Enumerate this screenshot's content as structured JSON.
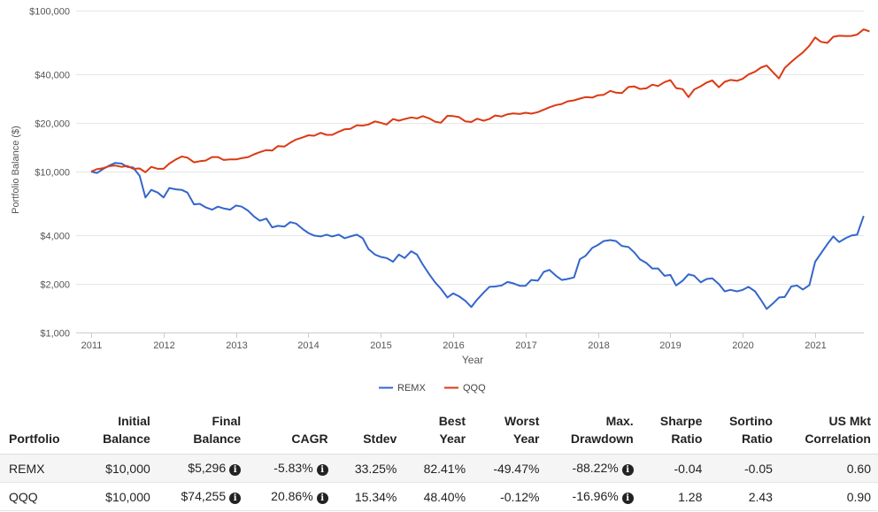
{
  "chart_data": {
    "type": "line",
    "title": "",
    "xlabel": "Year",
    "ylabel": "Portfolio Balance ($)",
    "y_scale": "log",
    "ylim": [
      1000,
      100000
    ],
    "xlim": [
      2011,
      2021.75
    ],
    "y_ticks": [
      1000,
      2000,
      4000,
      10000,
      20000,
      40000,
      100000
    ],
    "y_tick_labels": [
      "$1,000",
      "$2,000",
      "$4,000",
      "$10,000",
      "$20,000",
      "$40,000",
      "$100,000"
    ],
    "x_ticks": [
      2011,
      2012,
      2013,
      2014,
      2015,
      2016,
      2017,
      2018,
      2019,
      2020,
      2021
    ],
    "x_tick_labels": [
      "2011",
      "2012",
      "2013",
      "2014",
      "2015",
      "2016",
      "2017",
      "2018",
      "2019",
      "2020",
      "2021"
    ],
    "grid": "horizontal",
    "legend_position": "bottom",
    "series": [
      {
        "name": "REMX",
        "color": "#3366cc",
        "points": [
          [
            2011.0,
            10000
          ],
          [
            2011.08,
            9800
          ],
          [
            2011.17,
            10400
          ],
          [
            2011.25,
            10900
          ],
          [
            2011.33,
            11300
          ],
          [
            2011.42,
            11200
          ],
          [
            2011.5,
            10700
          ],
          [
            2011.58,
            10600
          ],
          [
            2011.67,
            9400
          ],
          [
            2011.75,
            6900
          ],
          [
            2011.83,
            7700
          ],
          [
            2011.92,
            7400
          ],
          [
            2012.0,
            6900
          ],
          [
            2012.08,
            7900
          ],
          [
            2012.17,
            7750
          ],
          [
            2012.25,
            7700
          ],
          [
            2012.33,
            7400
          ],
          [
            2012.42,
            6250
          ],
          [
            2012.5,
            6300
          ],
          [
            2012.58,
            6000
          ],
          [
            2012.67,
            5800
          ],
          [
            2012.75,
            6050
          ],
          [
            2012.83,
            5900
          ],
          [
            2012.92,
            5800
          ],
          [
            2013.0,
            6150
          ],
          [
            2013.08,
            6050
          ],
          [
            2013.17,
            5700
          ],
          [
            2013.25,
            5250
          ],
          [
            2013.33,
            4950
          ],
          [
            2013.42,
            5100
          ],
          [
            2013.5,
            4500
          ],
          [
            2013.58,
            4600
          ],
          [
            2013.67,
            4550
          ],
          [
            2013.75,
            4850
          ],
          [
            2013.83,
            4750
          ],
          [
            2013.92,
            4400
          ],
          [
            2014.0,
            4150
          ],
          [
            2014.08,
            4000
          ],
          [
            2014.17,
            3950
          ],
          [
            2014.25,
            4050
          ],
          [
            2014.33,
            3950
          ],
          [
            2014.42,
            4050
          ],
          [
            2014.5,
            3850
          ],
          [
            2014.58,
            3950
          ],
          [
            2014.67,
            4050
          ],
          [
            2014.75,
            3850
          ],
          [
            2014.83,
            3300
          ],
          [
            2014.92,
            3050
          ],
          [
            2015.0,
            2950
          ],
          [
            2015.08,
            2900
          ],
          [
            2015.17,
            2750
          ],
          [
            2015.25,
            3050
          ],
          [
            2015.33,
            2900
          ],
          [
            2015.42,
            3200
          ],
          [
            2015.5,
            3050
          ],
          [
            2015.58,
            2650
          ],
          [
            2015.67,
            2300
          ],
          [
            2015.75,
            2050
          ],
          [
            2015.83,
            1870
          ],
          [
            2015.92,
            1650
          ],
          [
            2016.0,
            1750
          ],
          [
            2016.08,
            1680
          ],
          [
            2016.17,
            1570
          ],
          [
            2016.25,
            1440
          ],
          [
            2016.33,
            1600
          ],
          [
            2016.42,
            1770
          ],
          [
            2016.5,
            1920
          ],
          [
            2016.58,
            1930
          ],
          [
            2016.67,
            1960
          ],
          [
            2016.75,
            2060
          ],
          [
            2016.83,
            2020
          ],
          [
            2016.92,
            1950
          ],
          [
            2017.0,
            1950
          ],
          [
            2017.08,
            2120
          ],
          [
            2017.17,
            2100
          ],
          [
            2017.25,
            2380
          ],
          [
            2017.33,
            2450
          ],
          [
            2017.42,
            2250
          ],
          [
            2017.5,
            2120
          ],
          [
            2017.58,
            2150
          ],
          [
            2017.67,
            2200
          ],
          [
            2017.75,
            2850
          ],
          [
            2017.83,
            3000
          ],
          [
            2017.92,
            3350
          ],
          [
            2018.0,
            3500
          ],
          [
            2018.08,
            3700
          ],
          [
            2018.17,
            3750
          ],
          [
            2018.25,
            3700
          ],
          [
            2018.33,
            3450
          ],
          [
            2018.42,
            3400
          ],
          [
            2018.5,
            3150
          ],
          [
            2018.58,
            2850
          ],
          [
            2018.67,
            2700
          ],
          [
            2018.75,
            2500
          ],
          [
            2018.83,
            2500
          ],
          [
            2018.92,
            2250
          ],
          [
            2019.0,
            2280
          ],
          [
            2019.08,
            1960
          ],
          [
            2019.17,
            2100
          ],
          [
            2019.25,
            2300
          ],
          [
            2019.33,
            2250
          ],
          [
            2019.42,
            2050
          ],
          [
            2019.5,
            2150
          ],
          [
            2019.58,
            2170
          ],
          [
            2019.67,
            2000
          ],
          [
            2019.75,
            1800
          ],
          [
            2019.83,
            1840
          ],
          [
            2019.92,
            1800
          ],
          [
            2020.0,
            1840
          ],
          [
            2020.08,
            1920
          ],
          [
            2020.17,
            1800
          ],
          [
            2020.25,
            1600
          ],
          [
            2020.33,
            1400
          ],
          [
            2020.42,
            1520
          ],
          [
            2020.5,
            1650
          ],
          [
            2020.58,
            1660
          ],
          [
            2020.67,
            1930
          ],
          [
            2020.75,
            1960
          ],
          [
            2020.83,
            1850
          ],
          [
            2020.92,
            1970
          ],
          [
            2021.0,
            2750
          ],
          [
            2021.08,
            3100
          ],
          [
            2021.17,
            3550
          ],
          [
            2021.25,
            3950
          ],
          [
            2021.33,
            3650
          ],
          [
            2021.42,
            3850
          ],
          [
            2021.5,
            4000
          ],
          [
            2021.58,
            4050
          ],
          [
            2021.67,
            5296
          ]
        ]
      },
      {
        "name": "QQQ",
        "color": "#dc3912",
        "points": [
          [
            2011.0,
            10000
          ],
          [
            2011.08,
            10350
          ],
          [
            2011.17,
            10500
          ],
          [
            2011.25,
            10800
          ],
          [
            2011.33,
            10900
          ],
          [
            2011.42,
            10700
          ],
          [
            2011.5,
            10850
          ],
          [
            2011.58,
            10400
          ],
          [
            2011.67,
            10450
          ],
          [
            2011.75,
            9900
          ],
          [
            2011.83,
            10700
          ],
          [
            2011.92,
            10400
          ],
          [
            2012.0,
            10400
          ],
          [
            2012.08,
            11200
          ],
          [
            2012.17,
            11900
          ],
          [
            2012.25,
            12400
          ],
          [
            2012.33,
            12200
          ],
          [
            2012.42,
            11400
          ],
          [
            2012.5,
            11600
          ],
          [
            2012.58,
            11700
          ],
          [
            2012.67,
            12300
          ],
          [
            2012.75,
            12300
          ],
          [
            2012.83,
            11800
          ],
          [
            2012.92,
            11900
          ],
          [
            2013.0,
            11900
          ],
          [
            2013.08,
            12100
          ],
          [
            2013.17,
            12300
          ],
          [
            2013.25,
            12800
          ],
          [
            2013.33,
            13200
          ],
          [
            2013.42,
            13600
          ],
          [
            2013.5,
            13500
          ],
          [
            2013.58,
            14400
          ],
          [
            2013.67,
            14300
          ],
          [
            2013.75,
            15100
          ],
          [
            2013.83,
            15800
          ],
          [
            2013.92,
            16300
          ],
          [
            2014.0,
            16800
          ],
          [
            2014.08,
            16700
          ],
          [
            2014.17,
            17400
          ],
          [
            2014.25,
            16900
          ],
          [
            2014.33,
            16900
          ],
          [
            2014.42,
            17700
          ],
          [
            2014.5,
            18300
          ],
          [
            2014.58,
            18400
          ],
          [
            2014.67,
            19400
          ],
          [
            2014.75,
            19300
          ],
          [
            2014.83,
            19600
          ],
          [
            2014.92,
            20500
          ],
          [
            2015.0,
            20100
          ],
          [
            2015.08,
            19600
          ],
          [
            2015.17,
            21200
          ],
          [
            2015.25,
            20700
          ],
          [
            2015.33,
            21200
          ],
          [
            2015.42,
            21700
          ],
          [
            2015.5,
            21400
          ],
          [
            2015.58,
            22100
          ],
          [
            2015.67,
            21400
          ],
          [
            2015.75,
            20400
          ],
          [
            2015.83,
            20100
          ],
          [
            2015.92,
            22200
          ],
          [
            2016.0,
            22100
          ],
          [
            2016.08,
            21800
          ],
          [
            2016.17,
            20500
          ],
          [
            2016.25,
            20300
          ],
          [
            2016.33,
            21300
          ],
          [
            2016.42,
            20700
          ],
          [
            2016.5,
            21200
          ],
          [
            2016.58,
            22300
          ],
          [
            2016.67,
            22000
          ],
          [
            2016.75,
            22700
          ],
          [
            2016.83,
            23000
          ],
          [
            2016.92,
            22800
          ],
          [
            2017.0,
            23200
          ],
          [
            2017.08,
            22900
          ],
          [
            2017.17,
            23400
          ],
          [
            2017.25,
            24200
          ],
          [
            2017.33,
            25100
          ],
          [
            2017.42,
            25900
          ],
          [
            2017.5,
            26300
          ],
          [
            2017.58,
            27300
          ],
          [
            2017.67,
            27700
          ],
          [
            2017.75,
            28400
          ],
          [
            2017.83,
            29000
          ],
          [
            2017.92,
            28800
          ],
          [
            2018.0,
            29800
          ],
          [
            2018.08,
            30000
          ],
          [
            2018.17,
            31700
          ],
          [
            2018.25,
            30900
          ],
          [
            2018.33,
            30700
          ],
          [
            2018.42,
            33500
          ],
          [
            2018.5,
            33800
          ],
          [
            2018.58,
            32600
          ],
          [
            2018.67,
            32900
          ],
          [
            2018.75,
            34700
          ],
          [
            2018.83,
            34000
          ],
          [
            2018.92,
            36000
          ],
          [
            2019.0,
            37000
          ],
          [
            2019.08,
            33000
          ],
          [
            2019.17,
            32500
          ],
          [
            2019.25,
            29000
          ],
          [
            2019.33,
            32400
          ],
          [
            2019.42,
            33900
          ],
          [
            2019.5,
            35700
          ],
          [
            2019.58,
            36800
          ],
          [
            2019.67,
            33400
          ],
          [
            2019.75,
            36100
          ],
          [
            2019.83,
            37100
          ],
          [
            2019.92,
            36600
          ],
          [
            2020.0,
            37700
          ],
          [
            2020.08,
            40100
          ],
          [
            2020.17,
            41700
          ],
          [
            2020.25,
            44200
          ],
          [
            2020.33,
            45600
          ],
          [
            2020.42,
            41300
          ],
          [
            2020.5,
            37900
          ],
          [
            2020.58,
            44000
          ],
          [
            2020.67,
            48000
          ],
          [
            2020.75,
            51500
          ],
          [
            2020.83,
            55000
          ],
          [
            2020.92,
            60500
          ],
          [
            2021.0,
            68200
          ],
          [
            2021.08,
            64000
          ],
          [
            2021.17,
            63000
          ],
          [
            2021.25,
            68800
          ],
          [
            2021.33,
            69800
          ],
          [
            2021.42,
            69500
          ],
          [
            2021.5,
            69600
          ],
          [
            2021.58,
            71000
          ],
          [
            2021.67,
            76500
          ],
          [
            2021.75,
            74255
          ]
        ]
      }
    ]
  },
  "legend": [
    {
      "name": "REMX",
      "color": "#3366cc"
    },
    {
      "name": "QQQ",
      "color": "#dc3912"
    }
  ],
  "table": {
    "headers": [
      {
        "line1": "",
        "line2": "Portfolio"
      },
      {
        "line1": "Initial",
        "line2": "Balance"
      },
      {
        "line1": "Final",
        "line2": "Balance"
      },
      {
        "line1": "",
        "line2": "CAGR"
      },
      {
        "line1": "",
        "line2": "Stdev"
      },
      {
        "line1": "Best",
        "line2": "Year"
      },
      {
        "line1": "Worst",
        "line2": "Year"
      },
      {
        "line1": "Max.",
        "line2": "Drawdown"
      },
      {
        "line1": "Sharpe",
        "line2": "Ratio"
      },
      {
        "line1": "Sortino",
        "line2": "Ratio"
      },
      {
        "line1": "US Mkt",
        "line2": "Correlation"
      }
    ],
    "rows": [
      {
        "portfolio": "REMX",
        "initial_balance": "$10,000",
        "final_balance": "$5,296",
        "cagr": "-5.83%",
        "stdev": "33.25%",
        "best_year": "82.41%",
        "worst_year": "-49.47%",
        "max_drawdown": "-88.22%",
        "sharpe": "-0.04",
        "sortino": "-0.05",
        "us_mkt_correlation": "0.60"
      },
      {
        "portfolio": "QQQ",
        "initial_balance": "$10,000",
        "final_balance": "$74,255",
        "cagr": "20.86%",
        "stdev": "15.34%",
        "best_year": "48.40%",
        "worst_year": "-0.12%",
        "max_drawdown": "-16.96%",
        "sharpe": "1.28",
        "sortino": "2.43",
        "us_mkt_correlation": "0.90"
      }
    ],
    "info_icon": "info-icon"
  }
}
